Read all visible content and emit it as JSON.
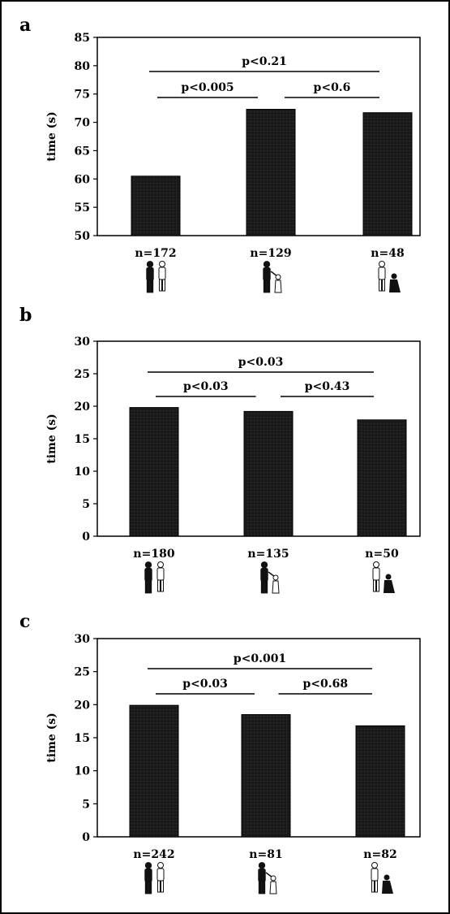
{
  "figure": {
    "colors": {
      "bar": "#1a1a1a",
      "bar_texture": "#3a3a3a",
      "axis": "#000000"
    }
  },
  "chart_data": [
    {
      "panel": "a",
      "type": "bar",
      "ylabel": "time (s)",
      "ylim": [
        50,
        85
      ],
      "yticks": [
        50,
        55,
        60,
        65,
        70,
        75,
        80,
        85
      ],
      "categories": [
        "n=172",
        "n=129",
        "n=48"
      ],
      "values": [
        60.5,
        72.3,
        71.7
      ],
      "icons": [
        "adult-child-pair-icon",
        "adult-guiding-child-icon",
        "adult-kneeling-child-icon"
      ],
      "comparisons": [
        {
          "label": "p<0.21",
          "from": 0,
          "to": 2,
          "level": 2
        },
        {
          "label": "p<0.005",
          "from": 0,
          "to": 1,
          "level": 1
        },
        {
          "label": "p<0.6",
          "from": 1,
          "to": 2,
          "level": 1
        }
      ]
    },
    {
      "panel": "b",
      "type": "bar",
      "ylabel": "time (s)",
      "ylim": [
        0,
        30
      ],
      "yticks": [
        0,
        5,
        10,
        15,
        20,
        25,
        30
      ],
      "categories": [
        "n=180",
        "n=135",
        "n=50"
      ],
      "values": [
        19.8,
        19.2,
        17.9
      ],
      "icons": [
        "adult-child-pair-icon",
        "adult-guiding-child-icon",
        "adult-kneeling-child-icon"
      ],
      "comparisons": [
        {
          "label": "p<0.03",
          "from": 0,
          "to": 2,
          "level": 2
        },
        {
          "label": "p<0.03",
          "from": 0,
          "to": 1,
          "level": 1
        },
        {
          "label": "p<0.43",
          "from": 1,
          "to": 2,
          "level": 1
        }
      ]
    },
    {
      "panel": "c",
      "type": "bar",
      "ylabel": "time (s)",
      "ylim": [
        0,
        30
      ],
      "yticks": [
        0,
        5,
        10,
        15,
        20,
        25,
        30
      ],
      "categories": [
        "n=242",
        "n=81",
        "n=82"
      ],
      "values": [
        19.9,
        18.5,
        16.8
      ],
      "icons": [
        "adult-child-pair-icon",
        "adult-guiding-child-icon",
        "adult-kneeling-child-icon"
      ],
      "comparisons": [
        {
          "label": "p<0.001",
          "from": 0,
          "to": 2,
          "level": 2
        },
        {
          "label": "p<0.03",
          "from": 0,
          "to": 1,
          "level": 1
        },
        {
          "label": "p<0.68",
          "from": 1,
          "to": 2,
          "level": 1
        }
      ]
    }
  ]
}
